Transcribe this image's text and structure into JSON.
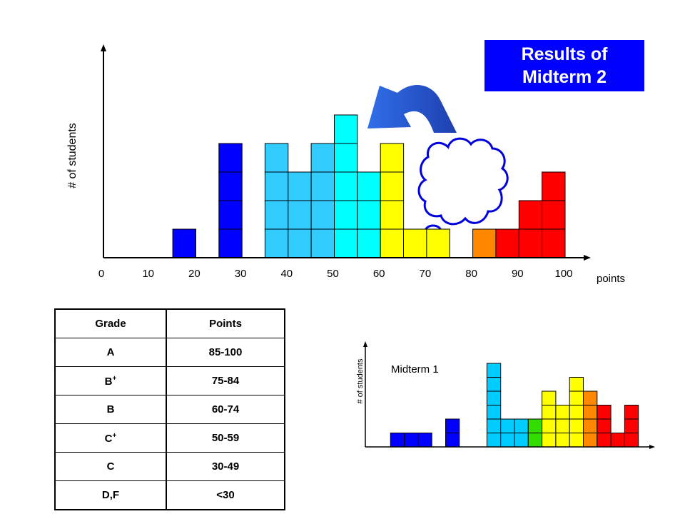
{
  "title": {
    "line1": "Results of",
    "line2": "Midterm 2",
    "color": "#0000ff"
  },
  "grade_table": {
    "headers": [
      "Grade",
      "Points"
    ],
    "rows": [
      {
        "grade": "A",
        "points": "85-100"
      },
      {
        "grade": "B+",
        "points": "75-84"
      },
      {
        "grade": "B",
        "points": "60-74"
      },
      {
        "grade": "C+",
        "points": "50-59"
      },
      {
        "grade": "C",
        "points": "30-49"
      },
      {
        "grade": "D,F",
        "points": "<30"
      }
    ]
  },
  "chart_data": [
    {
      "name": "midterm-2",
      "type": "bar",
      "title": "",
      "xlabel": "points",
      "ylabel": "# of students",
      "origin_label": "0",
      "x_ticks": [
        10,
        20,
        30,
        40,
        50,
        60,
        70,
        80,
        90,
        100
      ],
      "xlim": [
        0,
        100
      ],
      "ylim": [
        0,
        5
      ],
      "bin_width": 5,
      "bins": [
        {
          "x_start": 15,
          "count": 1,
          "color": "#0000ff"
        },
        {
          "x_start": 25,
          "count": 4,
          "color": "#0000ff"
        },
        {
          "x_start": 35,
          "count": 4,
          "color": "#33ccff"
        },
        {
          "x_start": 40,
          "count": 3,
          "color": "#33ccff"
        },
        {
          "x_start": 45,
          "count": 4,
          "color": "#33ccff"
        },
        {
          "x_start": 50,
          "count": 5,
          "color": "#00ffff"
        },
        {
          "x_start": 55,
          "count": 3,
          "color": "#00ffff"
        },
        {
          "x_start": 60,
          "count": 4,
          "color": "#ffff00"
        },
        {
          "x_start": 65,
          "count": 1,
          "color": "#ffff00"
        },
        {
          "x_start": 70,
          "count": 1,
          "color": "#ffff00"
        },
        {
          "x_start": 80,
          "count": 1,
          "color": "#ff8800"
        },
        {
          "x_start": 85,
          "count": 1,
          "color": "#ff0000"
        },
        {
          "x_start": 90,
          "count": 2,
          "color": "#ff0000"
        },
        {
          "x_start": 95,
          "count": 3,
          "color": "#ff0000"
        }
      ]
    },
    {
      "name": "midterm-1",
      "type": "bar",
      "title": "Midterm 1",
      "xlabel": "",
      "ylabel": "# of students",
      "ylim": [
        0,
        6
      ],
      "bins": [
        {
          "pos": 1,
          "count": 1,
          "color": "#0000ff"
        },
        {
          "pos": 2,
          "count": 1,
          "color": "#0000ff"
        },
        {
          "pos": 3,
          "count": 1,
          "color": "#0000ff"
        },
        {
          "pos": 5,
          "count": 2,
          "color": "#0000ff"
        },
        {
          "pos": 8,
          "count": 6,
          "color": "#00ccff"
        },
        {
          "pos": 9,
          "count": 2,
          "color": "#00ccff"
        },
        {
          "pos": 10,
          "count": 2,
          "color": "#00ccff"
        },
        {
          "pos": 11,
          "count": 2,
          "color": "#33dd00"
        },
        {
          "pos": 12,
          "count": 4,
          "color": "#ffff00"
        },
        {
          "pos": 13,
          "count": 3,
          "color": "#ffff00"
        },
        {
          "pos": 14,
          "count": 5,
          "color": "#ffff00"
        },
        {
          "pos": 15,
          "count": 4,
          "color": "#ff8800"
        },
        {
          "pos": 16,
          "count": 3,
          "color": "#ff0000"
        },
        {
          "pos": 17,
          "count": 1,
          "color": "#ff0000"
        },
        {
          "pos": 18,
          "count": 3,
          "color": "#ff0000"
        }
      ]
    }
  ]
}
